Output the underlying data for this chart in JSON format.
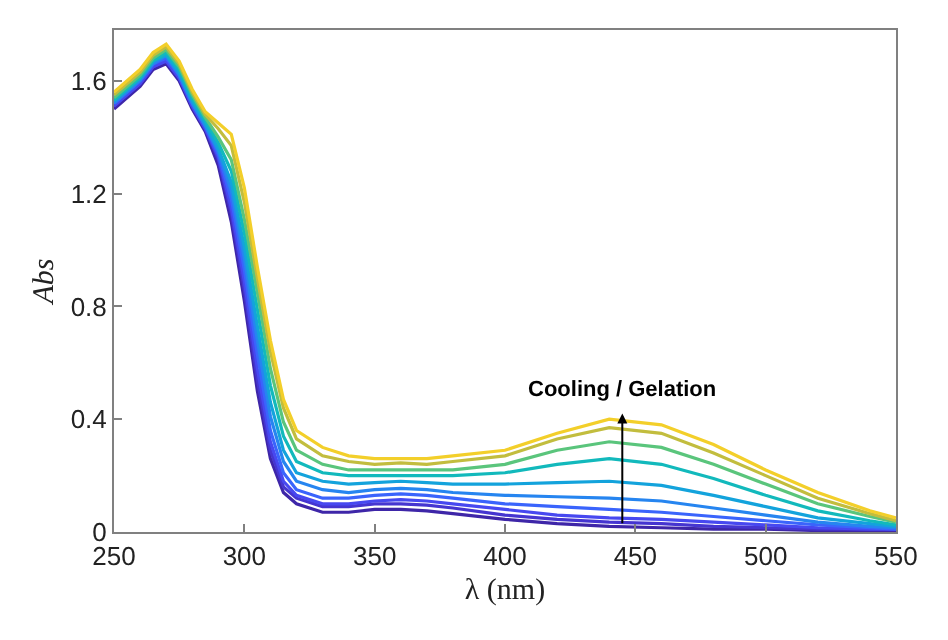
{
  "chart_data": {
    "type": "line",
    "xlabel": "λ (nm)",
    "ylabel": "Abs",
    "x": [
      250,
      260,
      265,
      270,
      275,
      280,
      285,
      290,
      295,
      300,
      305,
      310,
      315,
      320,
      330,
      340,
      350,
      360,
      370,
      380,
      400,
      420,
      440,
      460,
      480,
      500,
      520,
      540,
      550
    ],
    "series": [
      {
        "color": "#3e26a8",
        "values": [
          1.5,
          1.58,
          1.64,
          1.66,
          1.6,
          1.5,
          1.42,
          1.3,
          1.1,
          0.82,
          0.5,
          0.26,
          0.14,
          0.1,
          0.07,
          0.07,
          0.08,
          0.08,
          0.075,
          0.065,
          0.045,
          0.03,
          0.02,
          0.015,
          0.01,
          0.01,
          0.005,
          0.005,
          0.005
        ]
      },
      {
        "color": "#4535d0",
        "values": [
          1.51,
          1.59,
          1.65,
          1.67,
          1.61,
          1.51,
          1.43,
          1.32,
          1.13,
          0.86,
          0.54,
          0.29,
          0.16,
          0.12,
          0.09,
          0.09,
          0.1,
          0.1,
          0.095,
          0.085,
          0.06,
          0.045,
          0.035,
          0.03,
          0.02,
          0.015,
          0.01,
          0.01,
          0.01
        ]
      },
      {
        "color": "#4748f0",
        "values": [
          1.51,
          1.59,
          1.65,
          1.67,
          1.61,
          1.51,
          1.43,
          1.33,
          1.15,
          0.89,
          0.58,
          0.32,
          0.18,
          0.13,
          0.1,
          0.1,
          0.11,
          0.115,
          0.11,
          0.1,
          0.08,
          0.06,
          0.05,
          0.045,
          0.035,
          0.025,
          0.015,
          0.01,
          0.01
        ]
      },
      {
        "color": "#3a64fc",
        "values": [
          1.52,
          1.6,
          1.66,
          1.68,
          1.62,
          1.52,
          1.44,
          1.34,
          1.18,
          0.93,
          0.63,
          0.36,
          0.21,
          0.15,
          0.12,
          0.12,
          0.13,
          0.135,
          0.13,
          0.12,
          0.1,
          0.09,
          0.08,
          0.07,
          0.055,
          0.04,
          0.025,
          0.015,
          0.01
        ]
      },
      {
        "color": "#2685f0",
        "values": [
          1.52,
          1.6,
          1.66,
          1.69,
          1.62,
          1.52,
          1.44,
          1.35,
          1.21,
          0.97,
          0.68,
          0.41,
          0.25,
          0.18,
          0.15,
          0.14,
          0.15,
          0.155,
          0.15,
          0.14,
          0.13,
          0.125,
          0.12,
          0.11,
          0.085,
          0.06,
          0.035,
          0.02,
          0.015
        ]
      },
      {
        "color": "#13a3dc",
        "values": [
          1.53,
          1.61,
          1.67,
          1.69,
          1.63,
          1.53,
          1.45,
          1.36,
          1.24,
          1.01,
          0.73,
          0.46,
          0.29,
          0.21,
          0.18,
          0.17,
          0.175,
          0.18,
          0.175,
          0.17,
          0.17,
          0.175,
          0.18,
          0.165,
          0.13,
          0.09,
          0.05,
          0.03,
          0.02
        ]
      },
      {
        "color": "#12b9bc",
        "values": [
          1.53,
          1.61,
          1.67,
          1.7,
          1.64,
          1.54,
          1.46,
          1.38,
          1.28,
          1.06,
          0.79,
          0.52,
          0.34,
          0.25,
          0.21,
          0.2,
          0.2,
          0.2,
          0.2,
          0.2,
          0.21,
          0.24,
          0.26,
          0.24,
          0.19,
          0.13,
          0.075,
          0.04,
          0.025
        ]
      },
      {
        "color": "#5ac57c",
        "values": [
          1.54,
          1.62,
          1.68,
          1.71,
          1.65,
          1.55,
          1.47,
          1.4,
          1.32,
          1.11,
          0.85,
          0.58,
          0.39,
          0.29,
          0.24,
          0.22,
          0.22,
          0.22,
          0.22,
          0.22,
          0.24,
          0.29,
          0.32,
          0.3,
          0.24,
          0.17,
          0.1,
          0.055,
          0.035
        ]
      },
      {
        "color": "#c2bd3e",
        "values": [
          1.55,
          1.63,
          1.69,
          1.72,
          1.66,
          1.56,
          1.48,
          1.43,
          1.37,
          1.17,
          0.9,
          0.64,
          0.44,
          0.33,
          0.27,
          0.25,
          0.24,
          0.245,
          0.24,
          0.25,
          0.27,
          0.33,
          0.37,
          0.35,
          0.28,
          0.2,
          0.12,
          0.065,
          0.04
        ]
      },
      {
        "color": "#f3cf2a",
        "values": [
          1.56,
          1.64,
          1.7,
          1.73,
          1.67,
          1.57,
          1.49,
          1.45,
          1.41,
          1.22,
          0.94,
          0.68,
          0.47,
          0.36,
          0.3,
          0.27,
          0.26,
          0.26,
          0.26,
          0.27,
          0.29,
          0.35,
          0.4,
          0.38,
          0.31,
          0.22,
          0.14,
          0.075,
          0.05
        ]
      }
    ],
    "xlim": [
      250,
      550
    ],
    "xticks": [
      250,
      300,
      350,
      400,
      450,
      500,
      550
    ],
    "ylim": [
      0,
      1.78
    ],
    "yticks": [
      0,
      0.4,
      0.8,
      1.2,
      1.6
    ],
    "annotations": [
      {
        "text": "Cooling / Gelation",
        "x": 445,
        "y": 0.42
      }
    ],
    "line_style": "solid",
    "marker": "none"
  }
}
